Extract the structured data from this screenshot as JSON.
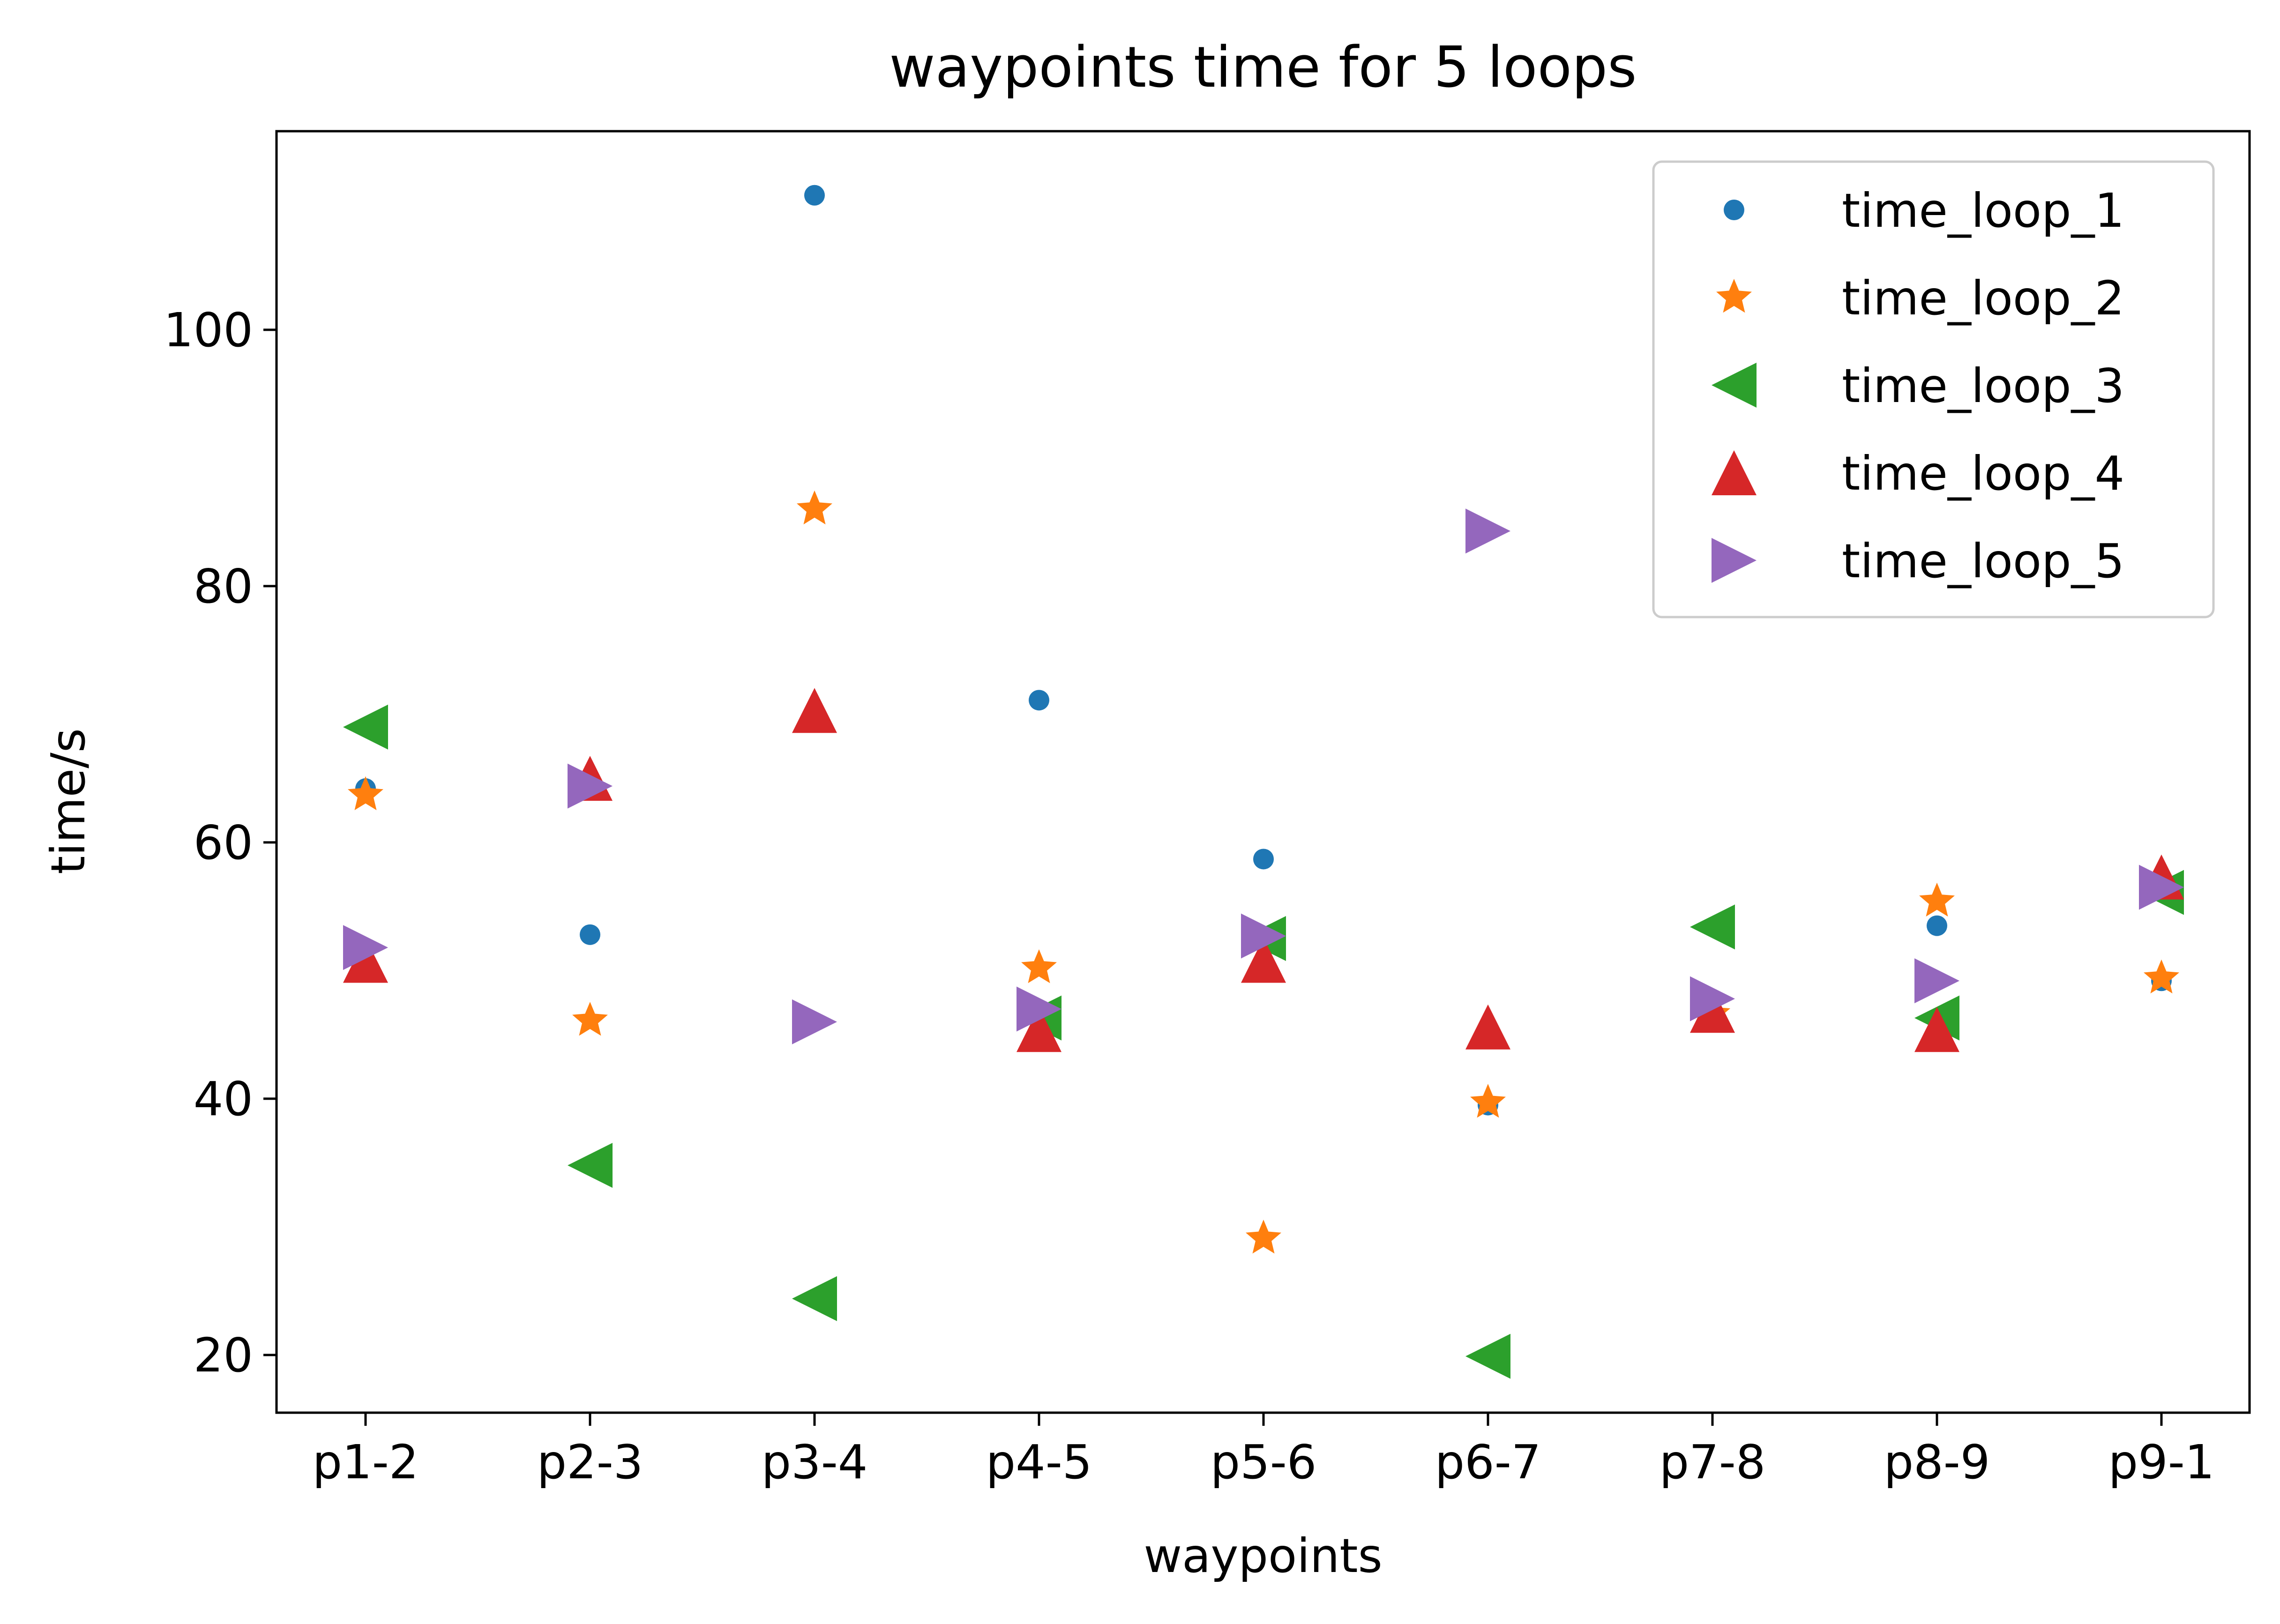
{
  "chart_data": {
    "type": "scatter",
    "title": "waypoints time for 5 loops",
    "xlabel": "waypoints",
    "ylabel": "time/s",
    "categories": [
      "p1-2",
      "p2-3",
      "p3-4",
      "p4-5",
      "p5-6",
      "p6-7",
      "p7-8",
      "p8-9",
      "p9-1"
    ],
    "ylim": [
      15.5,
      115.5
    ],
    "yticks": [
      20,
      40,
      60,
      80,
      100
    ],
    "grid": false,
    "legend_position": "top-right",
    "series": [
      {
        "name": "time_loop_1",
        "marker": "point",
        "color": "#1f77b4",
        "values": [
          64.2,
          52.8,
          110.5,
          71.1,
          58.7,
          39.5,
          46.8,
          53.5,
          49.2
        ]
      },
      {
        "name": "time_loop_2",
        "marker": "star",
        "color": "#ff7f0e",
        "values": [
          63.7,
          46.1,
          86.0,
          50.2,
          29.1,
          39.7,
          46.6,
          55.4,
          49.4
        ]
      },
      {
        "name": "time_loop_3",
        "marker": "triangle-left",
        "color": "#2ca02c",
        "values": [
          69.0,
          34.8,
          24.4,
          46.3,
          52.5,
          19.9,
          53.4,
          46.3,
          56.1
        ]
      },
      {
        "name": "time_loop_4",
        "marker": "triangle-up",
        "color": "#d62728",
        "values": [
          50.8,
          65.0,
          70.3,
          45.4,
          50.8,
          45.6,
          46.9,
          45.4,
          57.3
        ]
      },
      {
        "name": "time_loop_5",
        "marker": "triangle-right",
        "color": "#9467bd",
        "values": [
          51.8,
          64.4,
          46.0,
          47.0,
          52.7,
          84.3,
          47.8,
          49.2,
          56.5
        ]
      }
    ]
  }
}
